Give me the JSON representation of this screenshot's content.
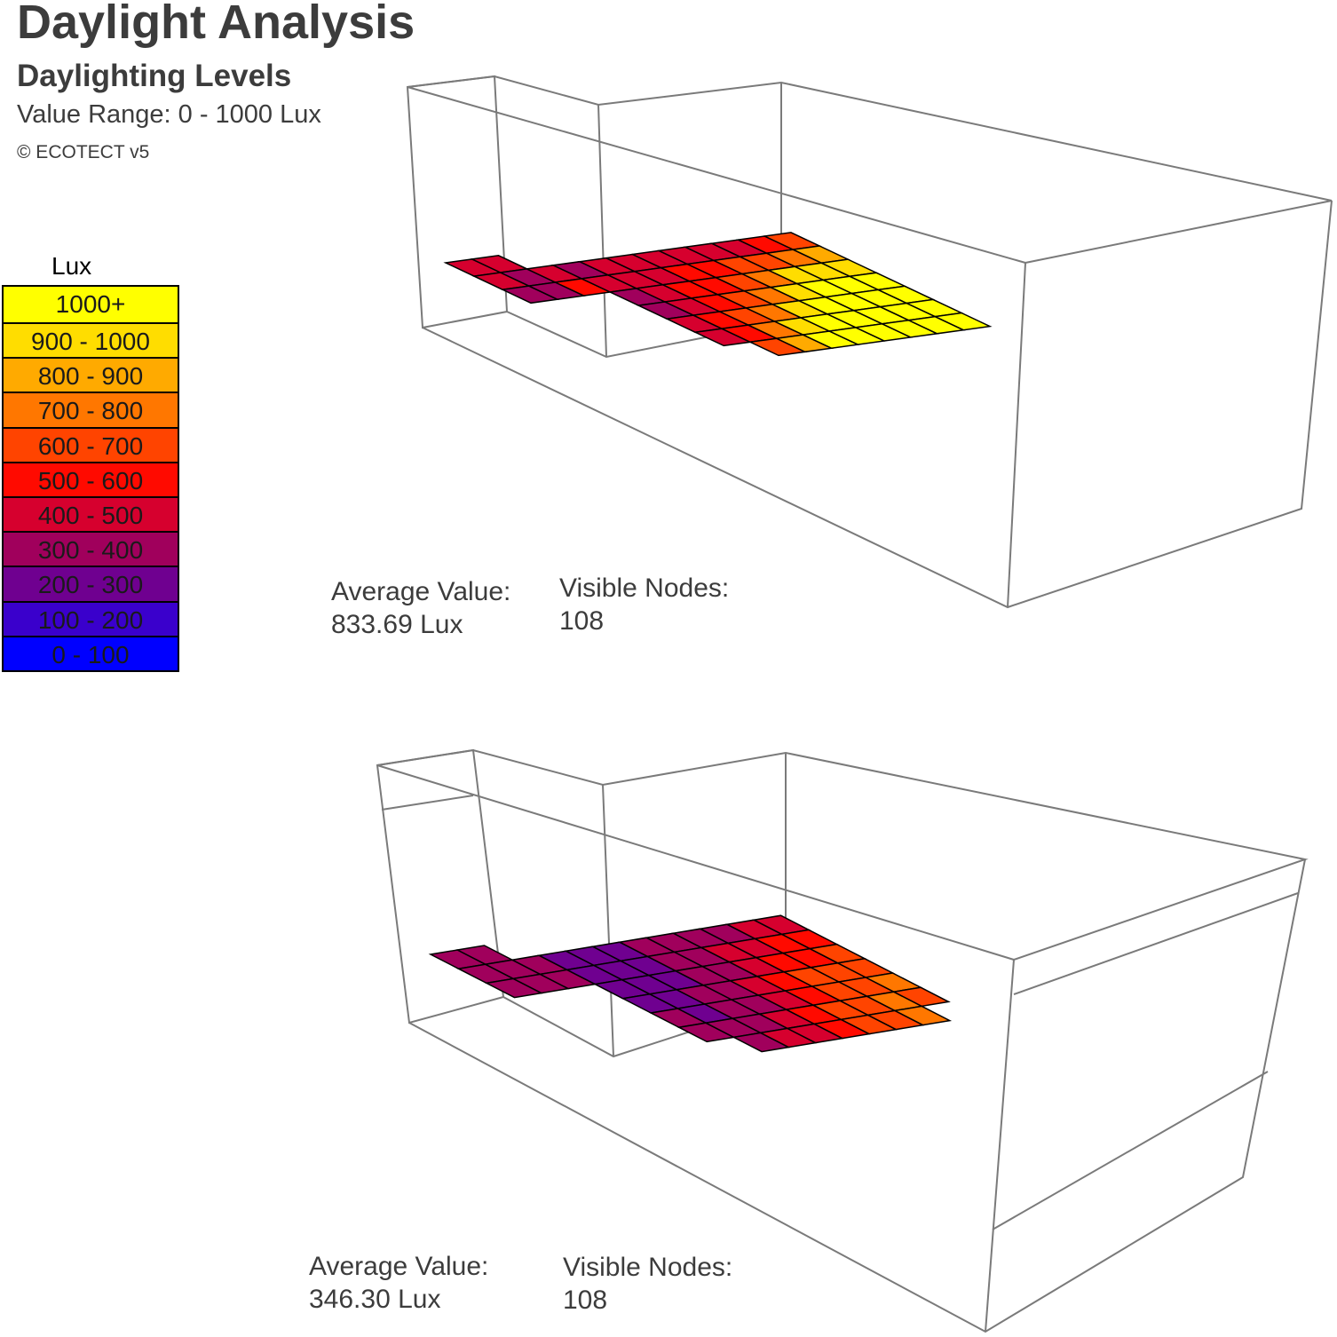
{
  "header": {
    "title": "Daylight Analysis",
    "subtitle": "Daylighting Levels",
    "value_range": "Value Range: 0 - 1000 Lux",
    "copyright": "© ECOTECT v5"
  },
  "legend": {
    "title": "Lux",
    "bands": [
      {
        "label": "1000+",
        "color": "#ffff00"
      },
      {
        "label": "900 - 1000",
        "color": "#ffdd00"
      },
      {
        "label": "800 - 900",
        "color": "#ffaa00"
      },
      {
        "label": "700 - 800",
        "color": "#ff7700"
      },
      {
        "label": "600 - 700",
        "color": "#ff4400"
      },
      {
        "label": "500 - 600",
        "color": "#ff0a00"
      },
      {
        "label": "400 - 500",
        "color": "#d6002e"
      },
      {
        "label": "300 - 400",
        "color": "#a0005c"
      },
      {
        "label": "200 - 300",
        "color": "#6f0090"
      },
      {
        "label": "100 - 200",
        "color": "#3a00cc"
      },
      {
        "label": "0 - 100",
        "color": "#0000ff"
      }
    ]
  },
  "views": [
    {
      "average_label": "Average Value:",
      "average_value": "833.69 Lux",
      "nodes_label": "Visible Nodes:",
      "nodes_value": "108",
      "grid_levels": [
        [
          6,
          6,
          0,
          0,
          0,
          0,
          0,
          0,
          0,
          0,
          0,
          0
        ],
        [
          6,
          7,
          6,
          7,
          6,
          6,
          6,
          6,
          6,
          6,
          5,
          4
        ],
        [
          7,
          7,
          5,
          6,
          6,
          6,
          5,
          5,
          4,
          4,
          3,
          2
        ],
        [
          0,
          0,
          0,
          7,
          6,
          5,
          5,
          4,
          3,
          1,
          1,
          1
        ],
        [
          0,
          0,
          0,
          7,
          6,
          5,
          4,
          3,
          1,
          0,
          0,
          0
        ],
        [
          0,
          0,
          0,
          6,
          5,
          4,
          3,
          1,
          0,
          0,
          0,
          0
        ],
        [
          0,
          0,
          0,
          6,
          5,
          3,
          1,
          0,
          0,
          0,
          0,
          0
        ],
        [
          0,
          0,
          0,
          0,
          4,
          2,
          0,
          0,
          0,
          0,
          0,
          0
        ]
      ]
    },
    {
      "average_label": "Average Value:",
      "average_value": "346.30 Lux",
      "nodes_label": "Visible Nodes:",
      "nodes_value": "108",
      "grid_levels": [
        [
          7,
          7,
          0,
          0,
          0,
          0,
          0,
          0,
          0,
          0,
          0,
          0
        ],
        [
          7,
          7,
          7,
          8,
          8,
          8,
          7,
          7,
          7,
          7,
          6,
          6
        ],
        [
          7,
          7,
          7,
          8,
          8,
          8,
          7,
          7,
          6,
          6,
          5,
          5
        ],
        [
          0,
          0,
          0,
          8,
          8,
          8,
          7,
          7,
          6,
          5,
          5,
          4
        ],
        [
          0,
          0,
          0,
          8,
          8,
          7,
          7,
          6,
          5,
          4,
          4,
          4
        ],
        [
          0,
          0,
          0,
          7,
          8,
          7,
          7,
          6,
          5,
          4,
          4,
          3
        ],
        [
          0,
          0,
          0,
          7,
          7,
          7,
          6,
          5,
          4,
          4,
          3,
          4
        ],
        [
          0,
          0,
          0,
          0,
          7,
          6,
          6,
          5,
          4,
          4,
          3,
          0
        ]
      ]
    }
  ]
}
